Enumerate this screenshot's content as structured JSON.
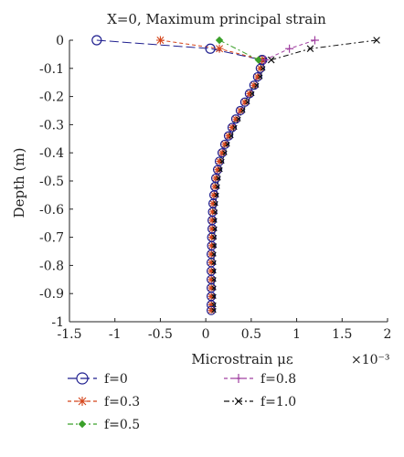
{
  "chart_data": {
    "type": "line",
    "title": "X=0, Maximum principal strain",
    "xlabel": "Microstrain με",
    "ylabel": "Depth (m)",
    "x_scale_note": "×10⁻³",
    "xlim": [
      -1.5,
      2
    ],
    "ylim": [
      -1,
      0
    ],
    "xticks": [
      -1.5,
      -1,
      -0.5,
      0,
      0.5,
      1,
      1.5,
      2
    ],
    "xtick_labels": [
      "-1.5",
      "-1",
      "-0.5",
      "0",
      "0.5",
      "1",
      "1.5",
      "2"
    ],
    "yticks": [
      0,
      -0.1,
      -0.2,
      -0.3,
      -0.4,
      -0.5,
      -0.6,
      -0.7,
      -0.8,
      -0.9,
      -1
    ],
    "ytick_labels": [
      "0",
      "-0.1",
      "-0.2",
      "-0.3",
      "-0.4",
      "-0.5",
      "-0.6",
      "-0.7",
      "-0.8",
      "-0.9",
      "-1"
    ],
    "grid": false,
    "legend": "bottom",
    "series": [
      {
        "name": "f=0",
        "marker": "circle",
        "dash": "long",
        "color": "#1f1f8f",
        "x": [
          -1.2,
          0.05,
          0.62
        ],
        "y": [
          0,
          -0.03,
          -0.07
        ]
      },
      {
        "name": "f=0.3",
        "marker": "star",
        "dash": "dashed",
        "color": "#d4441a",
        "x": [
          -0.5,
          0.15,
          0.62
        ],
        "y": [
          0,
          -0.03,
          -0.07
        ]
      },
      {
        "name": "f=0.5",
        "marker": "diamond",
        "dash": "dashdot",
        "color": "#3aa02a",
        "x": [
          0.15,
          0.58
        ],
        "y": [
          0,
          -0.07
        ]
      },
      {
        "name": "f=0.8",
        "marker": "plus",
        "dash": "dashed",
        "color": "#a040a0",
        "x": [
          1.2,
          0.92,
          0.65
        ],
        "y": [
          0,
          -0.03,
          -0.07
        ]
      },
      {
        "name": "f=1.0",
        "marker": "x",
        "dash": "dashdot",
        "color": "#111111",
        "x": [
          1.88,
          1.15,
          0.72
        ],
        "y": [
          0,
          -0.03,
          -0.07
        ]
      }
    ],
    "shared_profile": {
      "y": [
        -0.07,
        -0.1,
        -0.13,
        -0.16,
        -0.19,
        -0.22,
        -0.25,
        -0.28,
        -0.31,
        -0.34,
        -0.37,
        -0.4,
        -0.43,
        -0.46,
        -0.49,
        -0.52,
        -0.55,
        -0.58,
        -0.61,
        -0.64,
        -0.67,
        -0.7,
        -0.73,
        -0.76,
        -0.79,
        -0.82,
        -0.85,
        -0.88,
        -0.91,
        -0.94,
        -0.96
      ],
      "x": [
        0.62,
        0.6,
        0.57,
        0.53,
        0.48,
        0.43,
        0.38,
        0.33,
        0.29,
        0.25,
        0.21,
        0.18,
        0.15,
        0.13,
        0.11,
        0.1,
        0.09,
        0.08,
        0.075,
        0.07,
        0.07,
        0.065,
        0.065,
        0.06,
        0.06,
        0.06,
        0.06,
        0.06,
        0.06,
        0.06,
        0.06
      ]
    }
  }
}
